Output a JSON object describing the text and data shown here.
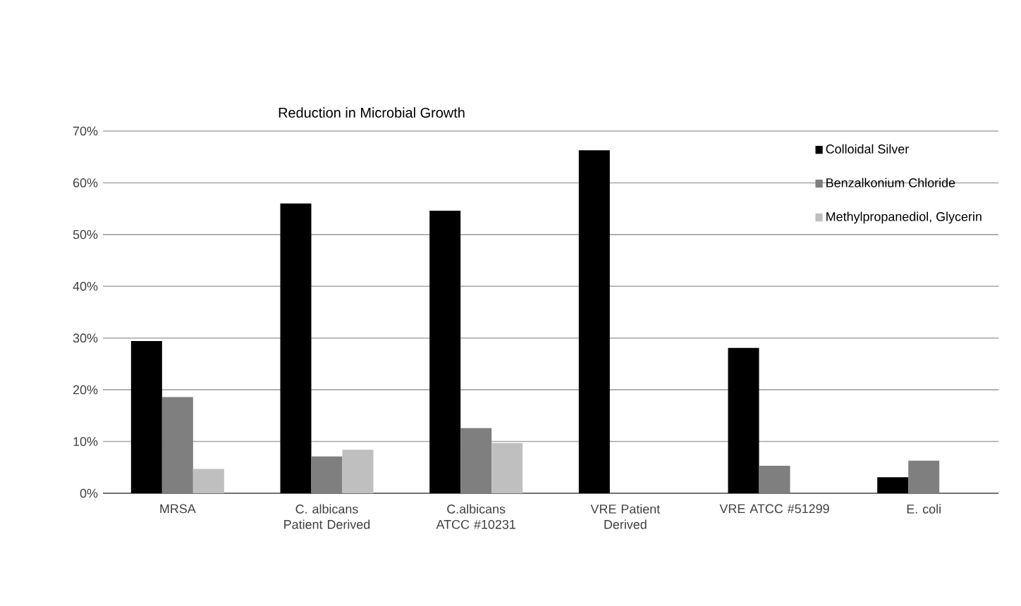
{
  "chart_data": {
    "type": "bar",
    "title": "Reduction in Microbial Growth",
    "categories": [
      "MRSA",
      "C. albicans Patient Derived",
      "C.albicans ATCC #10231",
      "VRE Patient Derived",
      "VRE ATCC #51299",
      "E. coli"
    ],
    "series": [
      {
        "name": "Colloidal Silver",
        "color": "#000000",
        "values": [
          29.4,
          56.0,
          54.6,
          66.3,
          28.1,
          3.1
        ]
      },
      {
        "name": "Benzalkonium Chloride",
        "color": "#7f7f7f",
        "values": [
          18.6,
          7.1,
          12.6,
          null,
          5.3,
          6.3
        ]
      },
      {
        "name": "Methylpropanediol, Glycerin",
        "color": "#bfbfbf",
        "values": [
          4.7,
          8.4,
          9.7,
          null,
          null,
          null
        ]
      }
    ],
    "ylim": [
      0,
      70
    ],
    "yticks": [
      {
        "value": 0,
        "label": "0%"
      },
      {
        "value": 10,
        "label": "10%"
      },
      {
        "value": 20,
        "label": "20%"
      },
      {
        "value": 30,
        "label": "30%"
      },
      {
        "value": 40,
        "label": "40%"
      },
      {
        "value": 50,
        "label": "50%"
      },
      {
        "value": 60,
        "label": "60%"
      },
      {
        "value": 70,
        "label": "70%"
      }
    ],
    "grid": "y",
    "legend": "top right"
  }
}
